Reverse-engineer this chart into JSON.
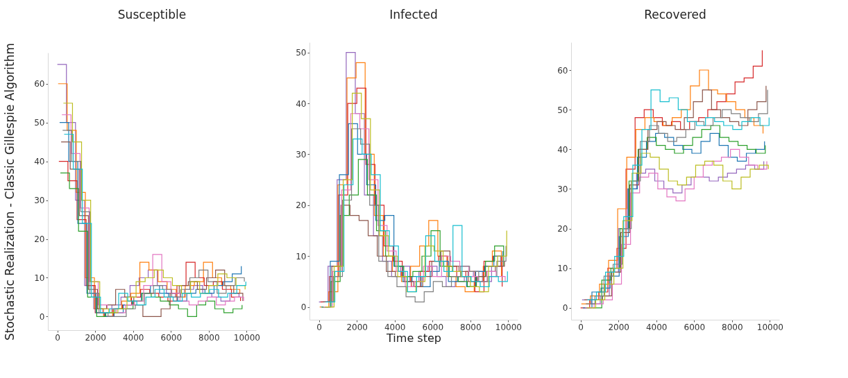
{
  "chart_data": [
    {
      "type": "step",
      "title": "Susceptible",
      "ylabel": "Stochastic Realization - Classic Gillespie Algorithm",
      "xlim": [
        -500,
        10500
      ],
      "xticks": [
        0,
        2000,
        4000,
        6000,
        8000,
        10000
      ],
      "ylim": [
        -3.5,
        68
      ],
      "yticks": [
        0,
        10,
        20,
        30,
        40,
        50,
        60
      ],
      "series": [
        {
          "color": "#9467bd",
          "x": [
            0,
            480,
            960,
            1440,
            1920,
            2400,
            2880,
            3360,
            3840,
            4320,
            4800,
            5280,
            5760,
            6240,
            6720,
            7200,
            7680,
            8160,
            8640,
            9120,
            9600
          ],
          "values": [
            65,
            50,
            30,
            8,
            2,
            1,
            3,
            5,
            8,
            10,
            12,
            8,
            6,
            5,
            7,
            8,
            6,
            5,
            4,
            6,
            5
          ]
        },
        {
          "color": "#ff7f0e",
          "x": [
            40,
            520,
            1000,
            1480,
            1960,
            2440,
            2920,
            3400,
            3880,
            4360,
            4840,
            5320,
            5800,
            6280,
            6760,
            7240,
            7720,
            8200,
            8680,
            9160,
            9640
          ],
          "values": [
            60,
            48,
            32,
            10,
            2,
            0,
            2,
            4,
            6,
            14,
            12,
            9,
            7,
            5,
            8,
            9,
            14,
            10,
            8,
            7,
            6
          ]
        },
        {
          "color": "#d62728",
          "x": [
            80,
            560,
            1040,
            1520,
            2000,
            2480,
            2960,
            3440,
            3920,
            4400,
            4880,
            5360,
            5840,
            6320,
            6800,
            7280,
            7760,
            8240,
            8720,
            9200,
            9680
          ],
          "values": [
            40,
            35,
            25,
            8,
            1,
            0,
            2,
            3,
            5,
            7,
            6,
            5,
            4,
            8,
            14,
            10,
            8,
            9,
            7,
            5,
            4
          ]
        },
        {
          "color": "#1f77b4",
          "x": [
            120,
            600,
            1080,
            1560,
            2040,
            2520,
            3000,
            3480,
            3960,
            4440,
            4920,
            5400,
            5880,
            6360,
            6840,
            7320,
            7800,
            8280,
            8760,
            9240,
            9720
          ],
          "values": [
            50,
            40,
            24,
            6,
            1,
            0,
            1,
            3,
            4,
            6,
            8,
            6,
            5,
            4,
            6,
            7,
            6,
            8,
            9,
            11,
            13
          ]
        },
        {
          "color": "#2ca02c",
          "x": [
            160,
            640,
            1120,
            1600,
            2080,
            2560,
            3040,
            3520,
            4000,
            4480,
            4960,
            5440,
            5920,
            6400,
            6880,
            7360,
            7840,
            8320,
            8800,
            9280,
            9760
          ],
          "values": [
            37,
            33,
            22,
            5,
            0,
            1,
            2,
            2,
            4,
            6,
            5,
            4,
            3,
            2,
            0,
            3,
            4,
            2,
            1,
            2,
            3
          ]
        },
        {
          "color": "#8c564b",
          "x": [
            200,
            680,
            1160,
            1640,
            2120,
            2600,
            3080,
            3560,
            4040,
            4520,
            5000,
            5480,
            5960,
            6440,
            6920,
            7400,
            7880,
            8360,
            8840,
            9320,
            9800
          ],
          "values": [
            45,
            38,
            26,
            7,
            2,
            3,
            7,
            5,
            3,
            0,
            0,
            2,
            6,
            8,
            9,
            7,
            10,
            12,
            8,
            6,
            4
          ]
        },
        {
          "color": "#e377c2",
          "x": [
            240,
            720,
            1200,
            1680,
            2160,
            2640,
            3120,
            3600,
            4080,
            4560,
            5040,
            5520,
            6000,
            6480,
            6960,
            7440,
            7920,
            8400,
            8880,
            9360,
            9840
          ],
          "values": [
            52,
            42,
            28,
            9,
            3,
            2,
            1,
            3,
            4,
            8,
            16,
            9,
            6,
            4,
            3,
            4,
            5,
            3,
            4,
            5,
            4
          ]
        },
        {
          "color": "#7f7f7f",
          "x": [
            280,
            760,
            1240,
            1720,
            2200,
            2680,
            3160,
            3640,
            4120,
            4600,
            5080,
            5560,
            6040,
            6520,
            7000,
            7480,
            7960,
            8440,
            8920,
            9400,
            9880
          ],
          "values": [
            48,
            40,
            27,
            6,
            1,
            0,
            0,
            2,
            3,
            6,
            8,
            7,
            5,
            7,
            10,
            12,
            9,
            6,
            8,
            10,
            9
          ]
        },
        {
          "color": "#bcbd22",
          "x": [
            320,
            800,
            1280,
            1760,
            2240,
            2720,
            3200,
            3680,
            4160,
            4640,
            5120,
            5600,
            6080,
            6560,
            7040,
            7520,
            8000,
            8480,
            8960,
            9440,
            9920
          ],
          "values": [
            55,
            45,
            30,
            9,
            2,
            1,
            2,
            5,
            9,
            10,
            12,
            10,
            8,
            6,
            9,
            6,
            8,
            11,
            10,
            8,
            7
          ]
        },
        {
          "color": "#17becf",
          "x": [
            360,
            840,
            1320,
            1800,
            2280,
            2760,
            3240,
            3720,
            4200,
            4680,
            5160,
            5640,
            6120,
            6600,
            7080,
            7560,
            8040,
            8520,
            9000,
            9480,
            9960
          ],
          "values": [
            47,
            38,
            24,
            5,
            1,
            2,
            6,
            4,
            3,
            5,
            7,
            5,
            4,
            6,
            5,
            6,
            7,
            5,
            6,
            8,
            9
          ]
        }
      ]
    },
    {
      "type": "step",
      "title": "Infected",
      "xlabel": "Time step",
      "xlim": [
        -500,
        10500
      ],
      "xticks": [
        0,
        2000,
        4000,
        6000,
        8000,
        10000
      ],
      "ylim": [
        -2.5,
        52
      ],
      "yticks": [
        0,
        10,
        20,
        30,
        40,
        50
      ],
      "series": [
        {
          "color": "#9467bd",
          "x": [
            0,
            480,
            960,
            1440,
            1920,
            2400,
            2880,
            3360,
            3840,
            4320,
            4800,
            5280,
            5760,
            6240,
            6720,
            7200,
            7680,
            8160,
            8640,
            9120,
            9600
          ],
          "values": [
            1,
            8,
            25,
            50,
            38,
            22,
            14,
            9,
            6,
            8,
            5,
            7,
            8,
            6,
            4,
            5,
            6,
            7,
            5,
            8,
            10
          ]
        },
        {
          "color": "#ff7f0e",
          "x": [
            40,
            520,
            1000,
            1480,
            1960,
            2440,
            2920,
            3400,
            3880,
            4360,
            4840,
            5320,
            5800,
            6280,
            6760,
            7240,
            7720,
            8200,
            8680,
            9160,
            9640
          ],
          "values": [
            0,
            3,
            24,
            45,
            48,
            30,
            18,
            10,
            7,
            5,
            8,
            12,
            17,
            10,
            6,
            4,
            3,
            5,
            8,
            11,
            6
          ]
        },
        {
          "color": "#d62728",
          "x": [
            80,
            560,
            1040,
            1520,
            2000,
            2480,
            2960,
            3440,
            3920,
            4400,
            4880,
            5360,
            5840,
            6320,
            6800,
            7280,
            7760,
            8240,
            8720,
            9200,
            9680
          ],
          "values": [
            1,
            6,
            22,
            40,
            43,
            28,
            20,
            12,
            9,
            6,
            4,
            7,
            9,
            10,
            8,
            6,
            7,
            3,
            9,
            10,
            4
          ]
        },
        {
          "color": "#1f77b4",
          "x": [
            120,
            600,
            1080,
            1560,
            2040,
            2520,
            3000,
            3480,
            3960,
            4440,
            4920,
            5400,
            5880,
            6360,
            6840,
            7320,
            7800,
            8280,
            8760,
            9240,
            9720
          ],
          "values": [
            0,
            9,
            26,
            36,
            30,
            24,
            17,
            18,
            8,
            5,
            6,
            4,
            7,
            9,
            5,
            6,
            4,
            7,
            8,
            10,
            11
          ]
        },
        {
          "color": "#2ca02c",
          "x": [
            160,
            640,
            1120,
            1600,
            2080,
            2560,
            3040,
            3520,
            4000,
            4480,
            4960,
            5440,
            5920,
            6400,
            6880,
            7360,
            7840,
            8320,
            8800,
            9280,
            9760
          ],
          "values": [
            0,
            5,
            18,
            22,
            29,
            22,
            15,
            10,
            8,
            6,
            7,
            10,
            15,
            8,
            6,
            5,
            4,
            6,
            9,
            12,
            8
          ]
        },
        {
          "color": "#8c564b",
          "x": [
            200,
            680,
            1160,
            1640,
            2120,
            2600,
            3080,
            3560,
            4040,
            4520,
            5000,
            5480,
            5960,
            6440,
            6920,
            7400,
            7880,
            8360,
            8840,
            9320,
            9800
          ],
          "values": [
            1,
            8,
            20,
            18,
            17,
            14,
            10,
            7,
            6,
            5,
            4,
            6,
            9,
            11,
            8,
            7,
            5,
            6,
            7,
            8,
            9
          ]
        },
        {
          "color": "#e377c2",
          "x": [
            240,
            720,
            1200,
            1680,
            2160,
            2640,
            3120,
            3600,
            4080,
            4560,
            5040,
            5520,
            6000,
            6480,
            6960,
            7440,
            7920,
            8400,
            8880,
            9360,
            9840
          ],
          "values": [
            0,
            7,
            23,
            38,
            35,
            25,
            16,
            11,
            7,
            4,
            5,
            8,
            6,
            10,
            9,
            8,
            6,
            5,
            7,
            6,
            5
          ]
        },
        {
          "color": "#7f7f7f",
          "x": [
            280,
            760,
            1240,
            1720,
            2200,
            2680,
            3160,
            3640,
            4120,
            4600,
            5080,
            5560,
            6040,
            6520,
            7000,
            7480,
            7960,
            8440,
            8920,
            9400,
            9880
          ],
          "values": [
            1,
            6,
            21,
            35,
            32,
            20,
            9,
            6,
            4,
            2,
            1,
            3,
            5,
            4,
            6,
            8,
            7,
            5,
            6,
            9,
            12
          ]
        },
        {
          "color": "#bcbd22",
          "x": [
            320,
            800,
            1280,
            1760,
            2240,
            2720,
            3200,
            3680,
            4160,
            4640,
            5120,
            5600,
            6080,
            6560,
            7040,
            7520,
            8000,
            8480,
            8960,
            9440,
            9920
          ],
          "values": [
            0,
            8,
            25,
            42,
            37,
            23,
            14,
            10,
            6,
            3,
            5,
            12,
            11,
            8,
            7,
            6,
            4,
            3,
            8,
            10,
            15
          ]
        },
        {
          "color": "#17becf",
          "x": [
            360,
            840,
            1320,
            1800,
            2280,
            2760,
            3240,
            3720,
            4200,
            4680,
            5160,
            5640,
            6120,
            6600,
            7080,
            7560,
            8040,
            8520,
            9000,
            9480,
            9960
          ],
          "values": [
            1,
            7,
            24,
            33,
            30,
            26,
            15,
            12,
            7,
            3,
            6,
            14,
            9,
            7,
            16,
            6,
            5,
            4,
            6,
            5,
            7
          ]
        }
      ]
    },
    {
      "type": "step",
      "title": "Recovered",
      "xlim": [
        -500,
        10500
      ],
      "xticks": [
        0,
        2000,
        4000,
        6000,
        8000,
        10000
      ],
      "ylim": [
        -3,
        67
      ],
      "yticks": [
        0,
        10,
        20,
        30,
        40,
        50,
        60
      ],
      "series": [
        {
          "color": "#d62728",
          "x": [
            0,
            480,
            960,
            1440,
            1920,
            2400,
            2880,
            3360,
            3840,
            4320,
            4800,
            5280,
            5760,
            6240,
            6720,
            7200,
            7680,
            8160,
            8640,
            9120,
            9600
          ],
          "values": [
            0,
            2,
            4,
            10,
            15,
            35,
            48,
            50,
            48,
            46,
            47,
            45,
            47,
            48,
            50,
            52,
            54,
            57,
            58,
            61,
            65
          ]
        },
        {
          "color": "#ff7f0e",
          "x": [
            40,
            520,
            1000,
            1480,
            1960,
            2440,
            2920,
            3400,
            3880,
            4360,
            4840,
            5320,
            5800,
            6280,
            6760,
            7240,
            7720,
            8200,
            8680,
            9160,
            9640
          ],
          "values": [
            1,
            3,
            6,
            12,
            25,
            38,
            45,
            48,
            47,
            46,
            48,
            50,
            56,
            60,
            55,
            54,
            52,
            50,
            48,
            46,
            44
          ]
        },
        {
          "color": "#9467bd",
          "x": [
            80,
            560,
            1040,
            1520,
            2000,
            2480,
            2960,
            3440,
            3920,
            4400,
            4880,
            5360,
            5840,
            6320,
            6800,
            7280,
            7760,
            8240,
            8720,
            9200,
            9680
          ],
          "values": [
            2,
            1,
            3,
            9,
            20,
            30,
            34,
            35,
            32,
            30,
            29,
            31,
            33,
            33,
            32,
            33,
            34,
            35,
            36,
            35,
            37
          ]
        },
        {
          "color": "#1f77b4",
          "x": [
            120,
            600,
            1080,
            1560,
            2040,
            2520,
            3000,
            3480,
            3960,
            4440,
            4920,
            5400,
            5880,
            6360,
            6840,
            7320,
            7800,
            8280,
            8760,
            9240,
            9720
          ],
          "values": [
            0,
            4,
            5,
            8,
            18,
            30,
            38,
            42,
            44,
            43,
            41,
            40,
            39,
            42,
            44,
            41,
            38,
            37,
            39,
            40,
            42
          ]
        },
        {
          "color": "#2ca02c",
          "x": [
            640,
            1120,
            1600,
            2080,
            2560,
            3040,
            3520,
            4000,
            4480,
            4960,
            5440,
            5920,
            6400,
            6880,
            7360,
            7840,
            8320,
            8800,
            9280,
            9760
          ],
          "values": [
            0,
            7,
            10,
            20,
            32,
            40,
            43,
            41,
            40,
            39,
            41,
            43,
            45,
            46,
            43,
            42,
            41,
            40,
            39,
            41
          ]
        },
        {
          "color": "#8c564b",
          "x": [
            200,
            680,
            1160,
            1640,
            2120,
            2600,
            3080,
            3560,
            4040,
            4520,
            5000,
            5480,
            5960,
            6440,
            6920,
            7400,
            7880,
            8360,
            8840,
            9320,
            9800
          ],
          "values": [
            2,
            2,
            3,
            9,
            19,
            31,
            40,
            45,
            47,
            46,
            45,
            48,
            52,
            55,
            50,
            48,
            47,
            46,
            50,
            52,
            56
          ]
        },
        {
          "color": "#e377c2",
          "x": [
            240,
            720,
            1200,
            1680,
            2160,
            2640,
            3120,
            3600,
            4080,
            4560,
            5040,
            5520,
            6000,
            6480,
            6960,
            7440,
            7920,
            8400,
            8880,
            9360,
            9840
          ],
          "values": [
            0,
            1,
            2,
            6,
            16,
            29,
            33,
            34,
            30,
            28,
            27,
            30,
            33,
            36,
            37,
            38,
            40,
            38,
            36,
            35,
            37
          ]
        },
        {
          "color": "#7f7f7f",
          "x": [
            280,
            760,
            1240,
            1720,
            2200,
            2680,
            3160,
            3640,
            4120,
            4600,
            5080,
            5560,
            6040,
            6520,
            7000,
            7480,
            7960,
            8440,
            8920,
            9400,
            9880
          ],
          "values": [
            1,
            3,
            8,
            11,
            20,
            32,
            42,
            46,
            44,
            42,
            43,
            45,
            47,
            46,
            48,
            50,
            49,
            48,
            47,
            49,
            55
          ]
        },
        {
          "color": "#bcbd22",
          "x": [
            320,
            800,
            1280,
            1760,
            2240,
            2720,
            3200,
            3680,
            4160,
            4640,
            5120,
            5600,
            6080,
            6560,
            7040,
            7520,
            8000,
            8480,
            8960,
            9440,
            9920
          ],
          "values": [
            0,
            2,
            6,
            10,
            22,
            34,
            39,
            38,
            35,
            32,
            31,
            33,
            36,
            37,
            36,
            32,
            30,
            33,
            35,
            36,
            35
          ]
        },
        {
          "color": "#17becf",
          "x": [
            360,
            840,
            1320,
            1800,
            2280,
            2760,
            3240,
            3720,
            4200,
            4680,
            5160,
            5640,
            6120,
            6600,
            7080,
            7560,
            8040,
            8520,
            9000,
            9480,
            9960
          ],
          "values": [
            2,
            4,
            9,
            13,
            23,
            36,
            45,
            55,
            52,
            53,
            50,
            47,
            46,
            48,
            47,
            46,
            45,
            47,
            48,
            46,
            48
          ]
        }
      ]
    }
  ]
}
